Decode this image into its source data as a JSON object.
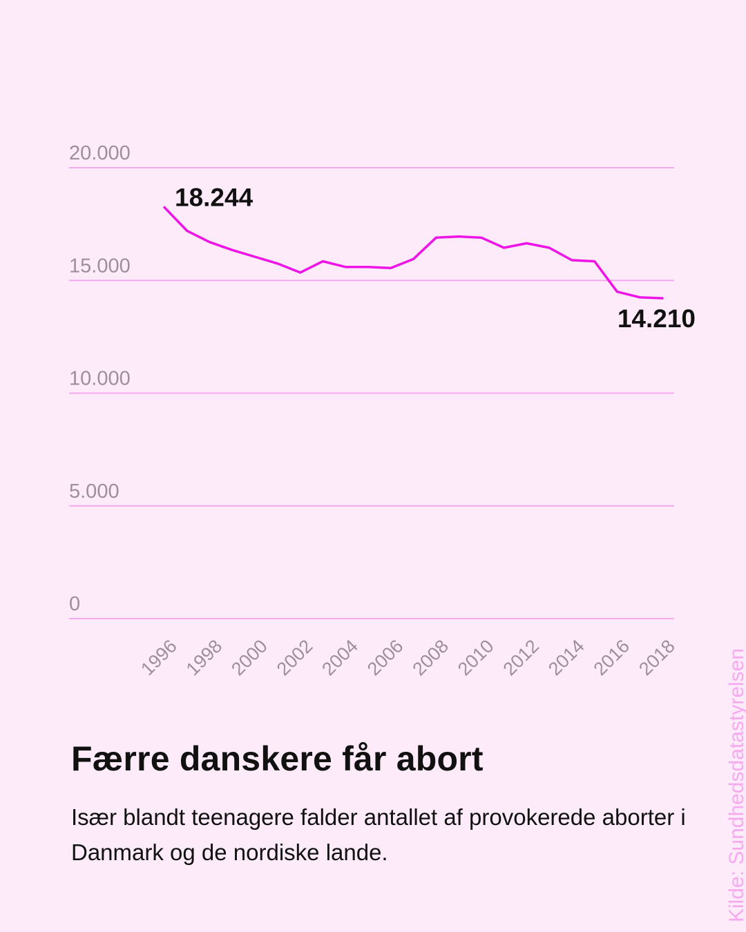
{
  "chart_data": {
    "type": "line",
    "x": [
      1996,
      1997,
      1998,
      1999,
      2000,
      2001,
      2002,
      2003,
      2004,
      2005,
      2006,
      2007,
      2008,
      2009,
      2010,
      2011,
      2012,
      2013,
      2014,
      2015,
      2016,
      2017,
      2018
    ],
    "series": [
      {
        "values": [
          18244,
          17200,
          16700,
          16350,
          16050,
          15750,
          15350,
          15850,
          15600,
          15600,
          15550,
          15950,
          16900,
          16950,
          16900,
          16450,
          16650,
          16450,
          15900,
          15850,
          14500,
          14250,
          14210
        ]
      }
    ],
    "x_tick_labels": [
      "1996",
      "1998",
      "2000",
      "2002",
      "2004",
      "2006",
      "2008",
      "2010",
      "2012",
      "2014",
      "2016",
      "2018"
    ],
    "y_tick_labels": [
      "20.000",
      "15.000",
      "10.000",
      "5.000",
      "0"
    ],
    "y_ticks": [
      20000,
      15000,
      10000,
      5000,
      0
    ],
    "ylim": [
      0,
      20000
    ],
    "xlim": [
      1994,
      2020
    ],
    "grid": true,
    "annotations": [
      {
        "text": "18.244",
        "x": 1996,
        "y": 18244,
        "position": "above-right"
      },
      {
        "text": "14.210",
        "x": 2018,
        "y": 14210,
        "position": "below"
      }
    ],
    "line_color": "#ee14e6",
    "grid_color": "#f2aaee",
    "title": "Færre danskere får abort",
    "subtitle": "Især blandt teenagere falder antallet af provokerede aborter i Danmark og de nordiske lande.",
    "xlabel": "",
    "ylabel": "",
    "source": "Kilde: Sundhedsdatastyrelsen"
  }
}
